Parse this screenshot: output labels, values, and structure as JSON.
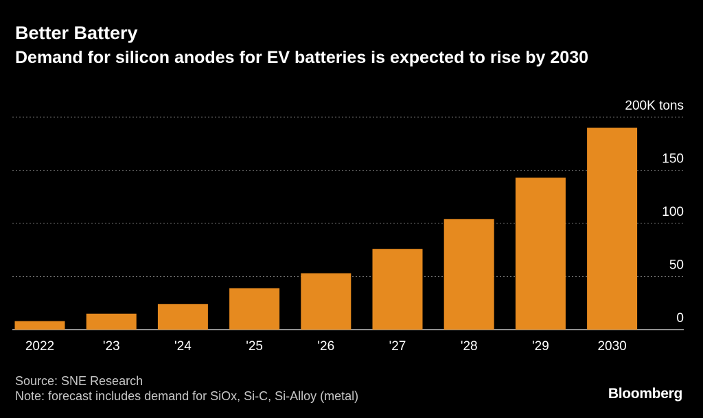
{
  "header": {
    "title": "Better Battery",
    "subtitle": "Demand for silicon anodes for EV batteries is expected to rise by 2030"
  },
  "footer": {
    "source": "Source: SNE Research",
    "note": "Note: forecast includes demand for SiOx, Si-C, Si-Alloy (metal)",
    "brand": "Bloomberg"
  },
  "colors": {
    "background": "#000000",
    "bar": "#e68a1f",
    "grid": "#6e6e6e",
    "text": "#ffffff",
    "muted": "#c8c8c8"
  },
  "chart_data": {
    "type": "bar",
    "categories": [
      "2022",
      "'23",
      "'24",
      "'25",
      "'26",
      "'27",
      "'28",
      "'29",
      "2030"
    ],
    "values": [
      8,
      15,
      24,
      39,
      53,
      76,
      104,
      143,
      190
    ],
    "ylim": [
      0,
      200
    ],
    "yticks": [
      {
        "value": 0,
        "label": "0"
      },
      {
        "value": 50,
        "label": "50"
      },
      {
        "value": 100,
        "label": "100"
      },
      {
        "value": 150,
        "label": "150"
      },
      {
        "value": 200,
        "label": "200K tons"
      }
    ],
    "grid": true,
    "y_axis_position": "right"
  }
}
